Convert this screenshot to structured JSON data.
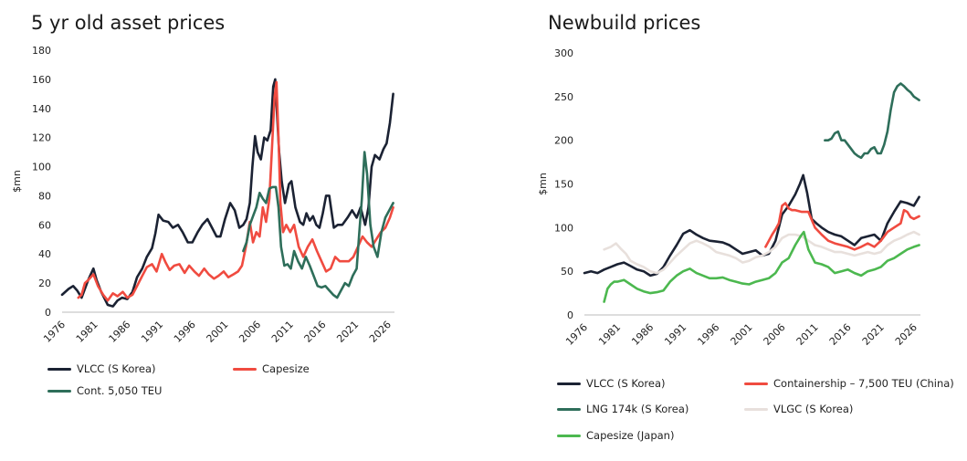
{
  "chart_data": [
    {
      "type": "line",
      "title": "5 yr old asset prices",
      "xlabel": "",
      "ylabel": "$mn",
      "xlim": [
        1976,
        2027
      ],
      "ylim": [
        0,
        180
      ],
      "y_ticks": [
        0,
        20,
        40,
        60,
        80,
        100,
        120,
        140,
        160,
        180
      ],
      "x_ticks": [
        "1976",
        "1981",
        "1986",
        "1991",
        "1996",
        "2001",
        "2006",
        "2011",
        "2016",
        "2021",
        "2026"
      ],
      "grid": false,
      "legend": "bottom",
      "series": [
        {
          "name": "VLCC (S Korea)",
          "color": "#1b2233",
          "x": [
            1976,
            1977,
            1977.7,
            1978.3,
            1979,
            1980,
            1980.8,
            1981.3,
            1982,
            1983,
            1983.8,
            1984.5,
            1985.2,
            1986,
            1986.8,
            1987.5,
            1988.3,
            1989,
            1989.8,
            1990.3,
            1990.8,
            1991.5,
            1992.3,
            1993,
            1993.8,
            1994.5,
            1995.3,
            1996,
            1996.8,
            1997.5,
            1998.3,
            1999,
            1999.7,
            2000.3,
            2001,
            2001.8,
            2002.5,
            2003.2,
            2003.8,
            2004.3,
            2004.8,
            2005.2,
            2005.6,
            2006,
            2006.5,
            2007,
            2007.5,
            2008,
            2008.4,
            2008.7,
            2009,
            2009.3,
            2009.7,
            2010.2,
            2010.8,
            2011.2,
            2011.8,
            2012.5,
            2013,
            2013.5,
            2014,
            2014.5,
            2015,
            2015.5,
            2016,
            2016.5,
            2017,
            2017.7,
            2018.3,
            2019,
            2019.8,
            2020.5,
            2021.2,
            2021.8,
            2022.5,
            2023,
            2023.5,
            2024,
            2024.7,
            2025.3,
            2025.8,
            2026.3,
            2026.8
          ],
          "y": [
            12,
            16,
            18,
            15,
            10,
            22,
            30,
            22,
            14,
            5,
            4,
            8,
            10,
            9,
            14,
            24,
            30,
            38,
            44,
            54,
            67,
            63,
            62,
            58,
            60,
            55,
            48,
            48,
            55,
            60,
            64,
            58,
            52,
            52,
            64,
            75,
            70,
            58,
            60,
            64,
            75,
            100,
            121,
            110,
            105,
            120,
            118,
            125,
            155,
            160,
            135,
            110,
            90,
            75,
            88,
            90,
            72,
            62,
            60,
            68,
            63,
            66,
            60,
            58,
            68,
            80,
            80,
            58,
            60,
            60,
            65,
            70,
            65,
            72,
            60,
            72,
            100,
            108,
            105,
            112,
            116,
            130,
            150
          ]
        },
        {
          "name": "Capesize",
          "color": "#f04b40",
          "x": [
            1978.5,
            1979,
            1979.5,
            1980,
            1980.8,
            1981.5,
            1982.3,
            1983,
            1983.8,
            1984.5,
            1985.3,
            1986,
            1986.8,
            1987.5,
            1988.3,
            1989,
            1989.8,
            1990.5,
            1991.3,
            1991.9,
            1992.5,
            1993.2,
            1994,
            1994.8,
            1995.5,
            1996.3,
            1997,
            1997.8,
            1998.5,
            1999.3,
            2000,
            2000.8,
            2001.5,
            2002.3,
            2003,
            2003.6,
            2004.2,
            2004.8,
            2005.3,
            2005.8,
            2006.3,
            2006.8,
            2007.3,
            2007.8,
            2008.2,
            2008.6,
            2008.9,
            2009.2,
            2009.5,
            2009.9,
            2010.4,
            2011,
            2011.6,
            2012.3,
            2013,
            2013.7,
            2014.4,
            2015.1,
            2015.8,
            2016.5,
            2017.2,
            2017.9,
            2018.6,
            2019.3,
            2020,
            2020.7,
            2021.4,
            2022.1,
            2022.8,
            2023.5,
            2024.2,
            2024.9,
            2025.6,
            2026.3,
            2026.8
          ],
          "y": [
            10,
            12,
            20,
            22,
            26,
            18,
            12,
            8,
            13,
            11,
            14,
            10,
            12,
            18,
            25,
            31,
            33,
            28,
            40,
            34,
            29,
            32,
            33,
            27,
            32,
            28,
            25,
            30,
            26,
            23,
            25,
            28,
            24,
            26,
            28,
            32,
            45,
            62,
            48,
            55,
            52,
            72,
            62,
            78,
            112,
            148,
            158,
            120,
            75,
            55,
            60,
            55,
            60,
            45,
            38,
            45,
            50,
            42,
            35,
            28,
            30,
            38,
            35,
            35,
            35,
            38,
            45,
            52,
            48,
            45,
            50,
            55,
            58,
            65,
            72
          ]
        },
        {
          "name": "Cont. 5,050 TEU",
          "color": "#2e6e5a",
          "x": [
            2003.8,
            2004.3,
            2004.8,
            2005.3,
            2005.8,
            2006.3,
            2006.8,
            2007.3,
            2007.8,
            2008.3,
            2008.8,
            2009.2,
            2009.6,
            2010.1,
            2010.6,
            2011.1,
            2011.6,
            2012.2,
            2012.8,
            2013.4,
            2014,
            2014.6,
            2015.2,
            2015.8,
            2016.4,
            2017,
            2017.6,
            2018.2,
            2018.8,
            2019.4,
            2020,
            2020.6,
            2021.2,
            2021.6,
            2022,
            2022.4,
            2022.8,
            2023.3,
            2023.8,
            2024.4,
            2025,
            2025.6,
            2026.2,
            2026.8
          ],
          "y": [
            42,
            48,
            60,
            66,
            72,
            82,
            78,
            75,
            85,
            86,
            86,
            72,
            45,
            32,
            33,
            30,
            42,
            35,
            30,
            38,
            32,
            25,
            18,
            17,
            18,
            15,
            12,
            10,
            15,
            20,
            18,
            25,
            30,
            55,
            78,
            110,
            95,
            60,
            45,
            38,
            55,
            65,
            70,
            75
          ]
        }
      ]
    },
    {
      "type": "line",
      "title": "Newbuild prices",
      "xlabel": "",
      "ylabel": "$mn",
      "xlim": [
        1976,
        2027
      ],
      "ylim": [
        0,
        300
      ],
      "y_ticks": [
        0,
        50,
        100,
        150,
        200,
        250,
        300
      ],
      "x_ticks": [
        "1976",
        "1981",
        "1986",
        "1991",
        "1996",
        "2001",
        "2006",
        "2011",
        "2016",
        "2021",
        "2026"
      ],
      "grid": false,
      "legend": "bottom",
      "series": [
        {
          "name": "VLCC (S Korea)",
          "color": "#1b2233",
          "x": [
            1976,
            1977,
            1978,
            1979,
            1980,
            1981,
            1982,
            1983,
            1984,
            1985,
            1986,
            1987,
            1988,
            1989,
            1990,
            1991,
            1992,
            1993,
            1994,
            1995,
            1996,
            1997,
            1998,
            1999,
            2000,
            2001,
            2002,
            2003,
            2004,
            2005,
            2006,
            2007,
            2008,
            2008.7,
            2009.2,
            2009.8,
            2010.5,
            2011.2,
            2012,
            2013,
            2014,
            2015,
            2016,
            2017,
            2018,
            2019,
            2020,
            2021,
            2022,
            2023,
            2024,
            2025,
            2026,
            2026.8
          ],
          "y": [
            48,
            50,
            48,
            52,
            55,
            58,
            60,
            56,
            52,
            50,
            45,
            47,
            55,
            68,
            80,
            93,
            97,
            92,
            88,
            85,
            84,
            83,
            80,
            75,
            70,
            72,
            74,
            68,
            70,
            85,
            115,
            125,
            138,
            150,
            160,
            140,
            110,
            105,
            100,
            95,
            92,
            90,
            85,
            80,
            88,
            90,
            92,
            85,
            105,
            118,
            130,
            128,
            125,
            135
          ]
        },
        {
          "name": "Containership – 7,500 TEU (China)",
          "color": "#f04b40",
          "x": [
            2003.5,
            2004,
            2004.5,
            2005,
            2005.5,
            2006,
            2006.5,
            2007,
            2007.5,
            2008,
            2009,
            2010,
            2011,
            2012,
            2013,
            2014,
            2015,
            2016,
            2017,
            2018,
            2019,
            2020,
            2021,
            2022,
            2023,
            2024,
            2024.5,
            2025,
            2025.5,
            2026,
            2026.8
          ],
          "y": [
            78,
            85,
            92,
            98,
            105,
            125,
            128,
            122,
            120,
            120,
            118,
            118,
            100,
            92,
            85,
            82,
            80,
            78,
            75,
            78,
            82,
            78,
            85,
            95,
            100,
            105,
            120,
            118,
            112,
            110,
            113
          ]
        },
        {
          "name": "LNG 174k (S Korea)",
          "color": "#2e6e5a",
          "x": [
            2012.5,
            2013,
            2013.5,
            2014,
            2014.5,
            2015,
            2015.5,
            2016,
            2016.5,
            2017,
            2017.5,
            2018,
            2018.5,
            2019,
            2019.5,
            2020,
            2020.5,
            2021,
            2021.5,
            2022,
            2022.5,
            2023,
            2023.5,
            2024,
            2024.5,
            2025,
            2025.5,
            2026,
            2026.8
          ],
          "y": [
            200,
            200,
            202,
            208,
            210,
            200,
            200,
            195,
            190,
            185,
            182,
            180,
            185,
            185,
            190,
            192,
            185,
            185,
            195,
            210,
            235,
            255,
            262,
            265,
            262,
            258,
            255,
            250,
            246
          ]
        },
        {
          "name": "VLGC (S Korea)",
          "color": "#e8e0dc",
          "x": [
            1979,
            1980,
            1980.8,
            1981.5,
            1982.3,
            1983,
            1984,
            1985,
            1986,
            1987,
            1988,
            1989,
            1990,
            1991,
            1992,
            1993,
            1994,
            1995,
            1996,
            1997,
            1998,
            1999,
            2000,
            2001,
            2002,
            2003,
            2004,
            2005,
            2006,
            2007,
            2008,
            2009,
            2010,
            2011,
            2012,
            2013,
            2014,
            2015,
            2016,
            2017,
            2018,
            2019,
            2020,
            2021,
            2022,
            2023,
            2024,
            2025,
            2026,
            2026.8
          ],
          "y": [
            75,
            78,
            82,
            76,
            70,
            62,
            58,
            55,
            50,
            48,
            52,
            60,
            68,
            75,
            82,
            85,
            82,
            78,
            72,
            70,
            68,
            65,
            60,
            62,
            66,
            68,
            72,
            78,
            88,
            92,
            92,
            90,
            85,
            80,
            78,
            75,
            72,
            72,
            70,
            68,
            70,
            72,
            70,
            72,
            80,
            85,
            88,
            92,
            95,
            92
          ]
        },
        {
          "name": "Capesize (Japan)",
          "color": "#4cb84f",
          "x": [
            1979,
            1979.5,
            1980,
            1980.5,
            1981,
            1982,
            1983,
            1984,
            1985,
            1986,
            1987,
            1988,
            1989,
            1990,
            1991,
            1992,
            1993,
            1994,
            1995,
            1996,
            1997,
            1998,
            1999,
            2000,
            2001,
            2002,
            2003,
            2004,
            2005,
            2006,
            2007,
            2008,
            2008.8,
            2009.3,
            2010,
            2011,
            2012,
            2013,
            2014,
            2015,
            2016,
            2017,
            2018,
            2019,
            2020,
            2021,
            2022,
            2023,
            2024,
            2025,
            2026,
            2026.8
          ],
          "y": [
            15,
            30,
            35,
            38,
            38,
            40,
            35,
            30,
            27,
            25,
            26,
            28,
            38,
            45,
            50,
            53,
            48,
            45,
            42,
            42,
            43,
            40,
            38,
            36,
            35,
            38,
            40,
            42,
            48,
            60,
            65,
            80,
            90,
            95,
            75,
            60,
            58,
            55,
            48,
            50,
            52,
            48,
            45,
            50,
            52,
            55,
            62,
            65,
            70,
            75,
            78,
            80
          ]
        }
      ]
    }
  ]
}
